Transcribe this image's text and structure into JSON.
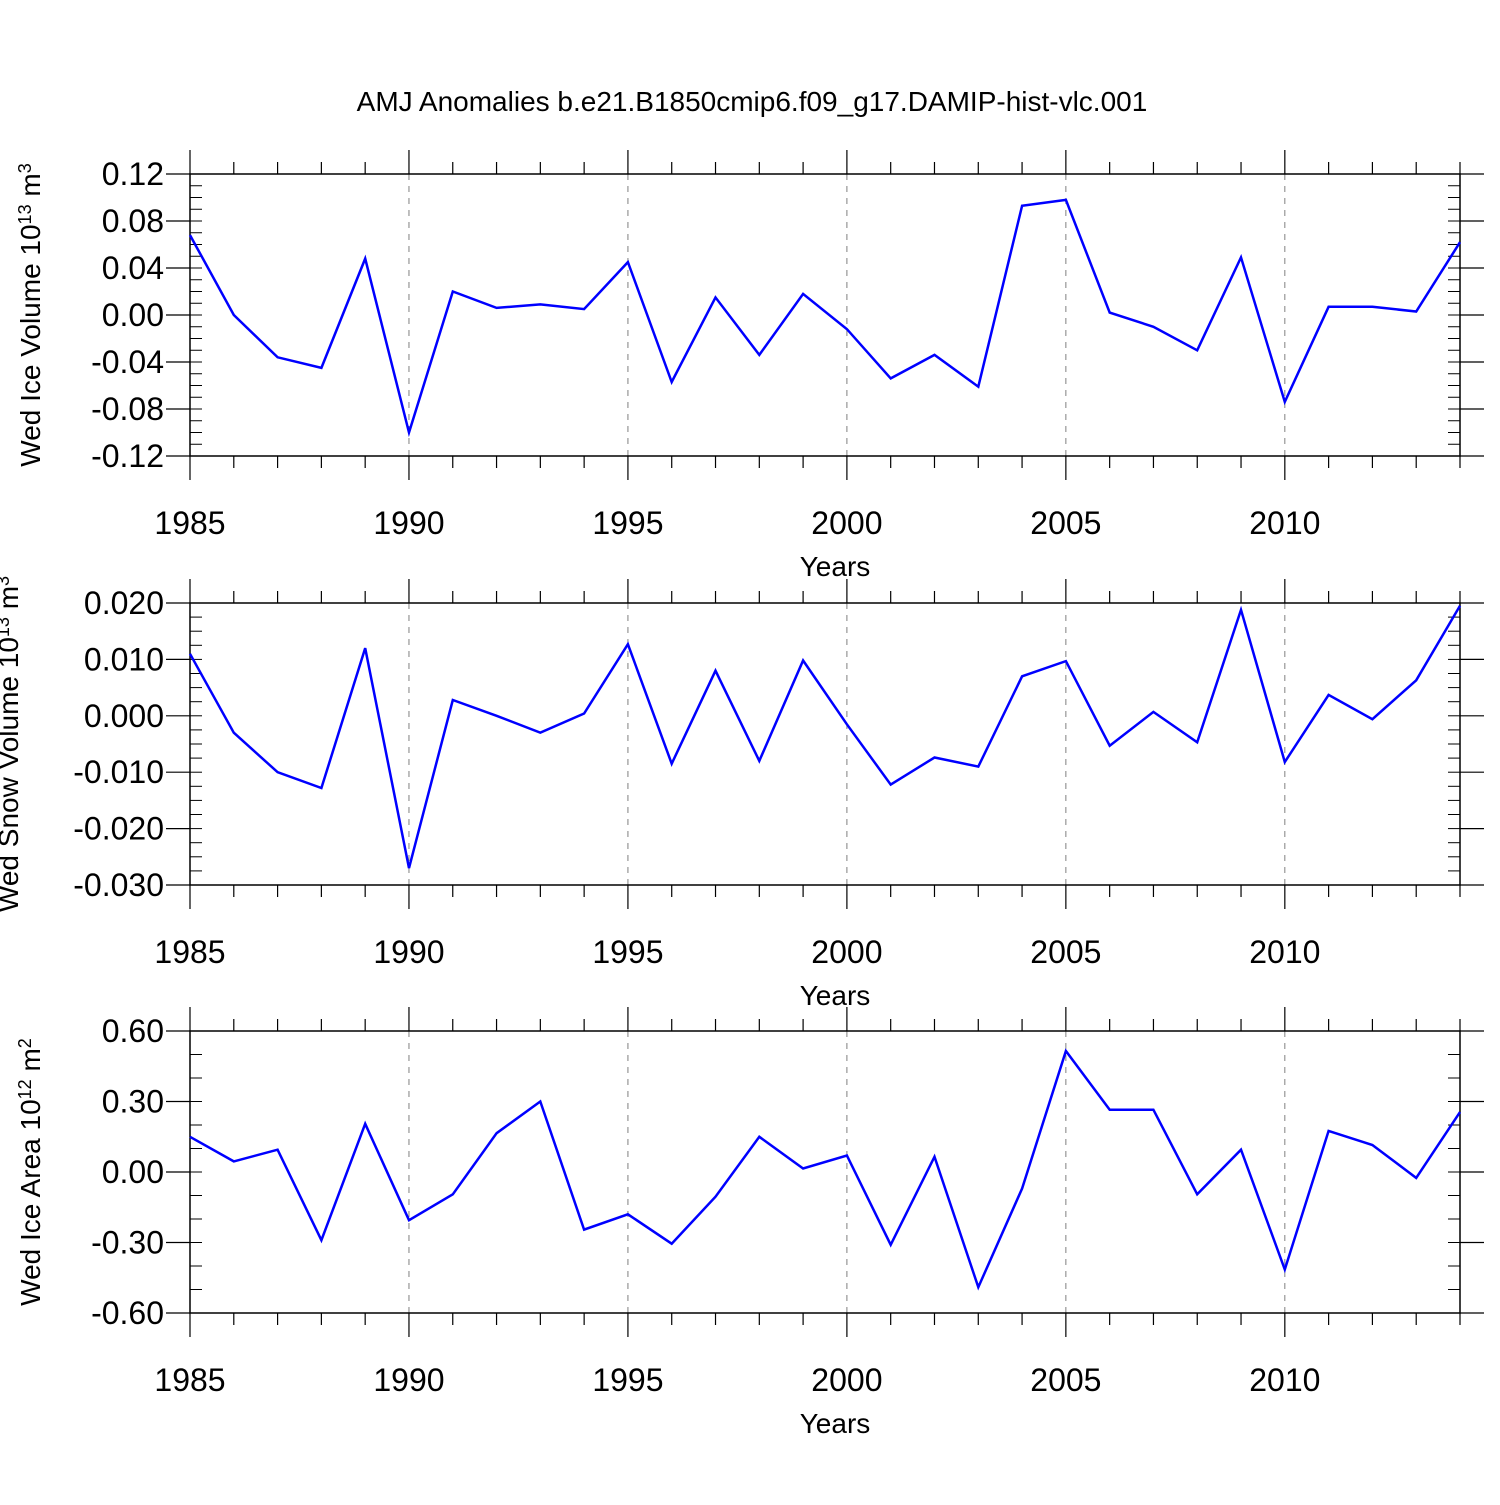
{
  "figure": {
    "title": "AMJ Anomalies b.e21.B1850cmip6.f09_g17.DAMIP-hist-vlc.001",
    "line_color": "#0000ff",
    "grid_color": "#808080"
  },
  "chart_data": [
    {
      "type": "line",
      "title": "AMJ Anomalies b.e21.B1850cmip6.f09_g17.DAMIP-hist-vlc.001",
      "ylabel_main": "Wed Ice Volume 10",
      "ylabel_exp": "13",
      "ylabel_unit": " m",
      "ylabel_unit_exp": "3",
      "xlabel": "Years",
      "xlim": [
        1985,
        2014
      ],
      "ylim": [
        -0.12,
        0.12
      ],
      "yticks": [
        -0.12,
        -0.08,
        -0.04,
        0.0,
        0.04,
        0.08,
        0.12
      ],
      "ytick_labels": [
        "-0.12",
        "-0.08",
        "-0.04",
        "0.00",
        "0.04",
        "0.08",
        "0.12"
      ],
      "ytick_minor_step": 0.01,
      "xticks": [
        1985,
        1990,
        1995,
        2000,
        2005,
        2010
      ],
      "xtick_labels": [
        "1985",
        "1990",
        "1995",
        "2000",
        "2005",
        "2010"
      ],
      "grid_x": [
        1990,
        1995,
        2000,
        2005,
        2010
      ],
      "series": [
        {
          "name": "Wed Ice Volume",
          "x": [
            1985,
            1986,
            1987,
            1988,
            1989,
            1990,
            1991,
            1992,
            1993,
            1994,
            1995,
            1996,
            1997,
            1998,
            1999,
            2000,
            2001,
            2002,
            2003,
            2004,
            2005,
            2006,
            2007,
            2008,
            2009,
            2010,
            2011,
            2012,
            2013,
            2014
          ],
          "values": [
            0.068,
            0.0,
            -0.036,
            -0.045,
            0.048,
            -0.1,
            0.02,
            0.006,
            0.009,
            0.005,
            0.045,
            -0.057,
            0.015,
            -0.034,
            0.018,
            -0.012,
            -0.054,
            -0.034,
            -0.061,
            0.093,
            0.098,
            0.002,
            -0.01,
            -0.03,
            0.049,
            -0.074,
            0.007,
            0.007,
            0.003,
            0.062
          ]
        }
      ]
    },
    {
      "type": "line",
      "ylabel_main": "Wed Snow Volume 10",
      "ylabel_exp": "13",
      "ylabel_unit": " m",
      "ylabel_unit_exp": "3",
      "xlabel": "Years",
      "xlim": [
        1985,
        2014
      ],
      "ylim": [
        -0.03,
        0.02
      ],
      "yticks": [
        -0.03,
        -0.02,
        -0.01,
        0.0,
        0.01,
        0.02
      ],
      "ytick_labels": [
        "-0.030",
        "-0.020",
        "-0.010",
        "0.000",
        "0.010",
        "0.020"
      ],
      "ytick_minor_step": 0.0025,
      "xticks": [
        1985,
        1990,
        1995,
        2000,
        2005,
        2010
      ],
      "xtick_labels": [
        "1985",
        "1990",
        "1995",
        "2000",
        "2005",
        "2010"
      ],
      "grid_x": [
        1990,
        1995,
        2000,
        2005,
        2010
      ],
      "series": [
        {
          "name": "Wed Snow Volume",
          "x": [
            1985,
            1986,
            1987,
            1988,
            1989,
            1990,
            1991,
            1992,
            1993,
            1994,
            1995,
            1996,
            1997,
            1998,
            1999,
            2000,
            2001,
            2002,
            2003,
            2004,
            2005,
            2006,
            2007,
            2008,
            2009,
            2010,
            2011,
            2012,
            2013,
            2014
          ],
          "values": [
            0.011,
            -0.003,
            -0.01,
            -0.0128,
            0.012,
            -0.027,
            0.0028,
            0.0,
            -0.003,
            0.0004,
            0.0127,
            -0.0085,
            0.008,
            -0.008,
            0.0098,
            -0.0015,
            -0.0122,
            -0.0074,
            -0.009,
            0.007,
            0.0097,
            -0.0053,
            0.0007,
            -0.0047,
            0.0188,
            -0.0082,
            0.0037,
            -0.0006,
            0.0063,
            0.0195
          ]
        }
      ]
    },
    {
      "type": "line",
      "ylabel_main": "Wed Ice Area 10",
      "ylabel_exp": "12",
      "ylabel_unit": " m",
      "ylabel_unit_exp": "2",
      "xlabel": "Years",
      "xlim": [
        1985,
        2014
      ],
      "ylim": [
        -0.6,
        0.6
      ],
      "yticks": [
        -0.6,
        -0.3,
        0.0,
        0.3,
        0.6
      ],
      "ytick_labels": [
        "-0.60",
        "-0.30",
        "0.00",
        "0.30",
        "0.60"
      ],
      "ytick_minor_step": 0.1,
      "xticks": [
        1985,
        1990,
        1995,
        2000,
        2005,
        2010
      ],
      "xtick_labels": [
        "1985",
        "1990",
        "1995",
        "2000",
        "2005",
        "2010"
      ],
      "grid_x": [
        1990,
        1995,
        2000,
        2005,
        2010
      ],
      "series": [
        {
          "name": "Wed Ice Area",
          "x": [
            1985,
            1986,
            1987,
            1988,
            1989,
            1990,
            1991,
            1992,
            1993,
            1994,
            1995,
            1996,
            1997,
            1998,
            1999,
            2000,
            2001,
            2002,
            2003,
            2004,
            2005,
            2006,
            2007,
            2008,
            2009,
            2010,
            2011,
            2012,
            2013,
            2014
          ],
          "values": [
            0.15,
            0.045,
            0.095,
            -0.29,
            0.205,
            -0.205,
            -0.095,
            0.165,
            0.3,
            -0.245,
            -0.18,
            -0.305,
            -0.105,
            0.15,
            0.015,
            0.07,
            -0.31,
            0.065,
            -0.49,
            -0.07,
            0.515,
            0.265,
            0.265,
            -0.095,
            0.095,
            -0.415,
            0.175,
            0.115,
            -0.025,
            0.255
          ]
        }
      ]
    }
  ]
}
